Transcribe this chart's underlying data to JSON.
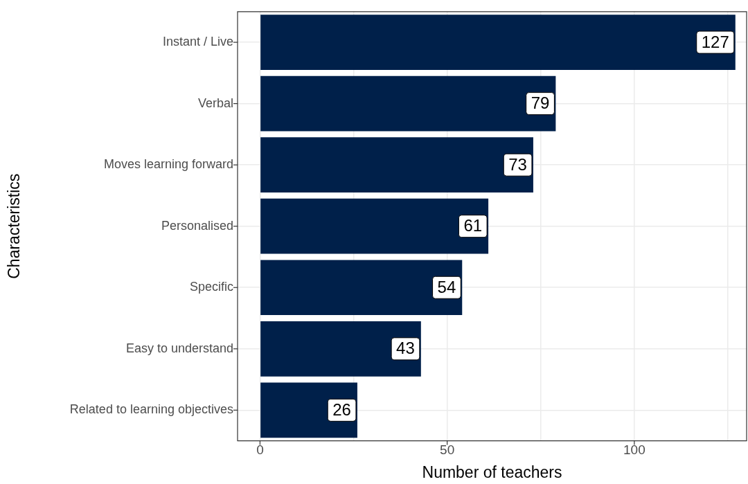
{
  "chart_data": {
    "type": "bar",
    "orientation": "horizontal",
    "xlabel": "Number of teachers",
    "ylabel": "Characteristics",
    "categories": [
      "Instant / Live",
      "Verbal",
      "Moves learning forward",
      "Personalised",
      "Specific",
      "Easy to understand",
      "Related to learning objectives"
    ],
    "values": [
      127,
      79,
      73,
      61,
      54,
      43,
      26
    ],
    "color": "#00204a",
    "data_labels": true,
    "xlim": [
      -6,
      130
    ],
    "xticks": [
      0,
      {
        "value": 25,
        "label": null
      },
      50,
      {
        "value": 75,
        "label": null
      },
      100,
      {
        "value": 125,
        "label": null
      }
    ],
    "grid": true,
    "legend": false
  }
}
